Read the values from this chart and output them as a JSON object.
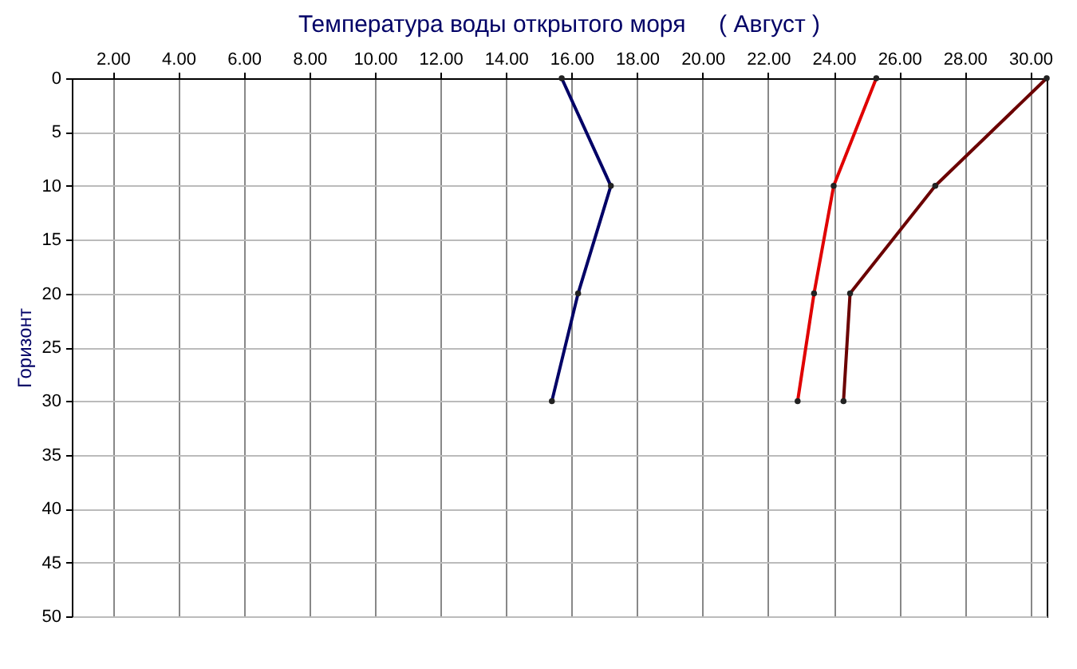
{
  "chart_data": {
    "type": "line",
    "title": "Температура воды открытого моря     ( Август )",
    "ylabel": "Горизонт",
    "xlim": [
      0.75,
      30.5
    ],
    "xticks": [
      {
        "value": 2,
        "label": "2.00"
      },
      {
        "value": 4,
        "label": "4.00"
      },
      {
        "value": 6,
        "label": "6.00"
      },
      {
        "value": 8,
        "label": "8.00"
      },
      {
        "value": 10,
        "label": "10.00"
      },
      {
        "value": 12,
        "label": "12.00"
      },
      {
        "value": 14,
        "label": "14.00"
      },
      {
        "value": 16,
        "label": "16.00"
      },
      {
        "value": 18,
        "label": "18.00"
      },
      {
        "value": 20,
        "label": "20.00"
      },
      {
        "value": 22,
        "label": "22.00"
      },
      {
        "value": 24,
        "label": "24.00"
      },
      {
        "value": 26,
        "label": "26.00"
      },
      {
        "value": 28,
        "label": "28.00"
      },
      {
        "value": 30,
        "label": "30.00"
      }
    ],
    "ylim": [
      50,
      0
    ],
    "yticks": [
      0,
      5,
      10,
      15,
      20,
      25,
      30,
      35,
      40,
      45,
      50
    ],
    "grid": true,
    "marker": "circle",
    "series": [
      {
        "color": "#000066",
        "x": [
          15.7,
          17.2,
          16.2,
          15.4
        ],
        "values": [
          0,
          10,
          20,
          30
        ]
      },
      {
        "color": "#e00000",
        "x": [
          25.3,
          24.0,
          23.4,
          22.9
        ],
        "values": [
          0,
          10,
          20,
          30
        ]
      },
      {
        "color": "#6b0000",
        "x": [
          30.5,
          27.1,
          24.5,
          24.3
        ],
        "values": [
          0,
          10,
          20,
          30
        ]
      }
    ]
  }
}
